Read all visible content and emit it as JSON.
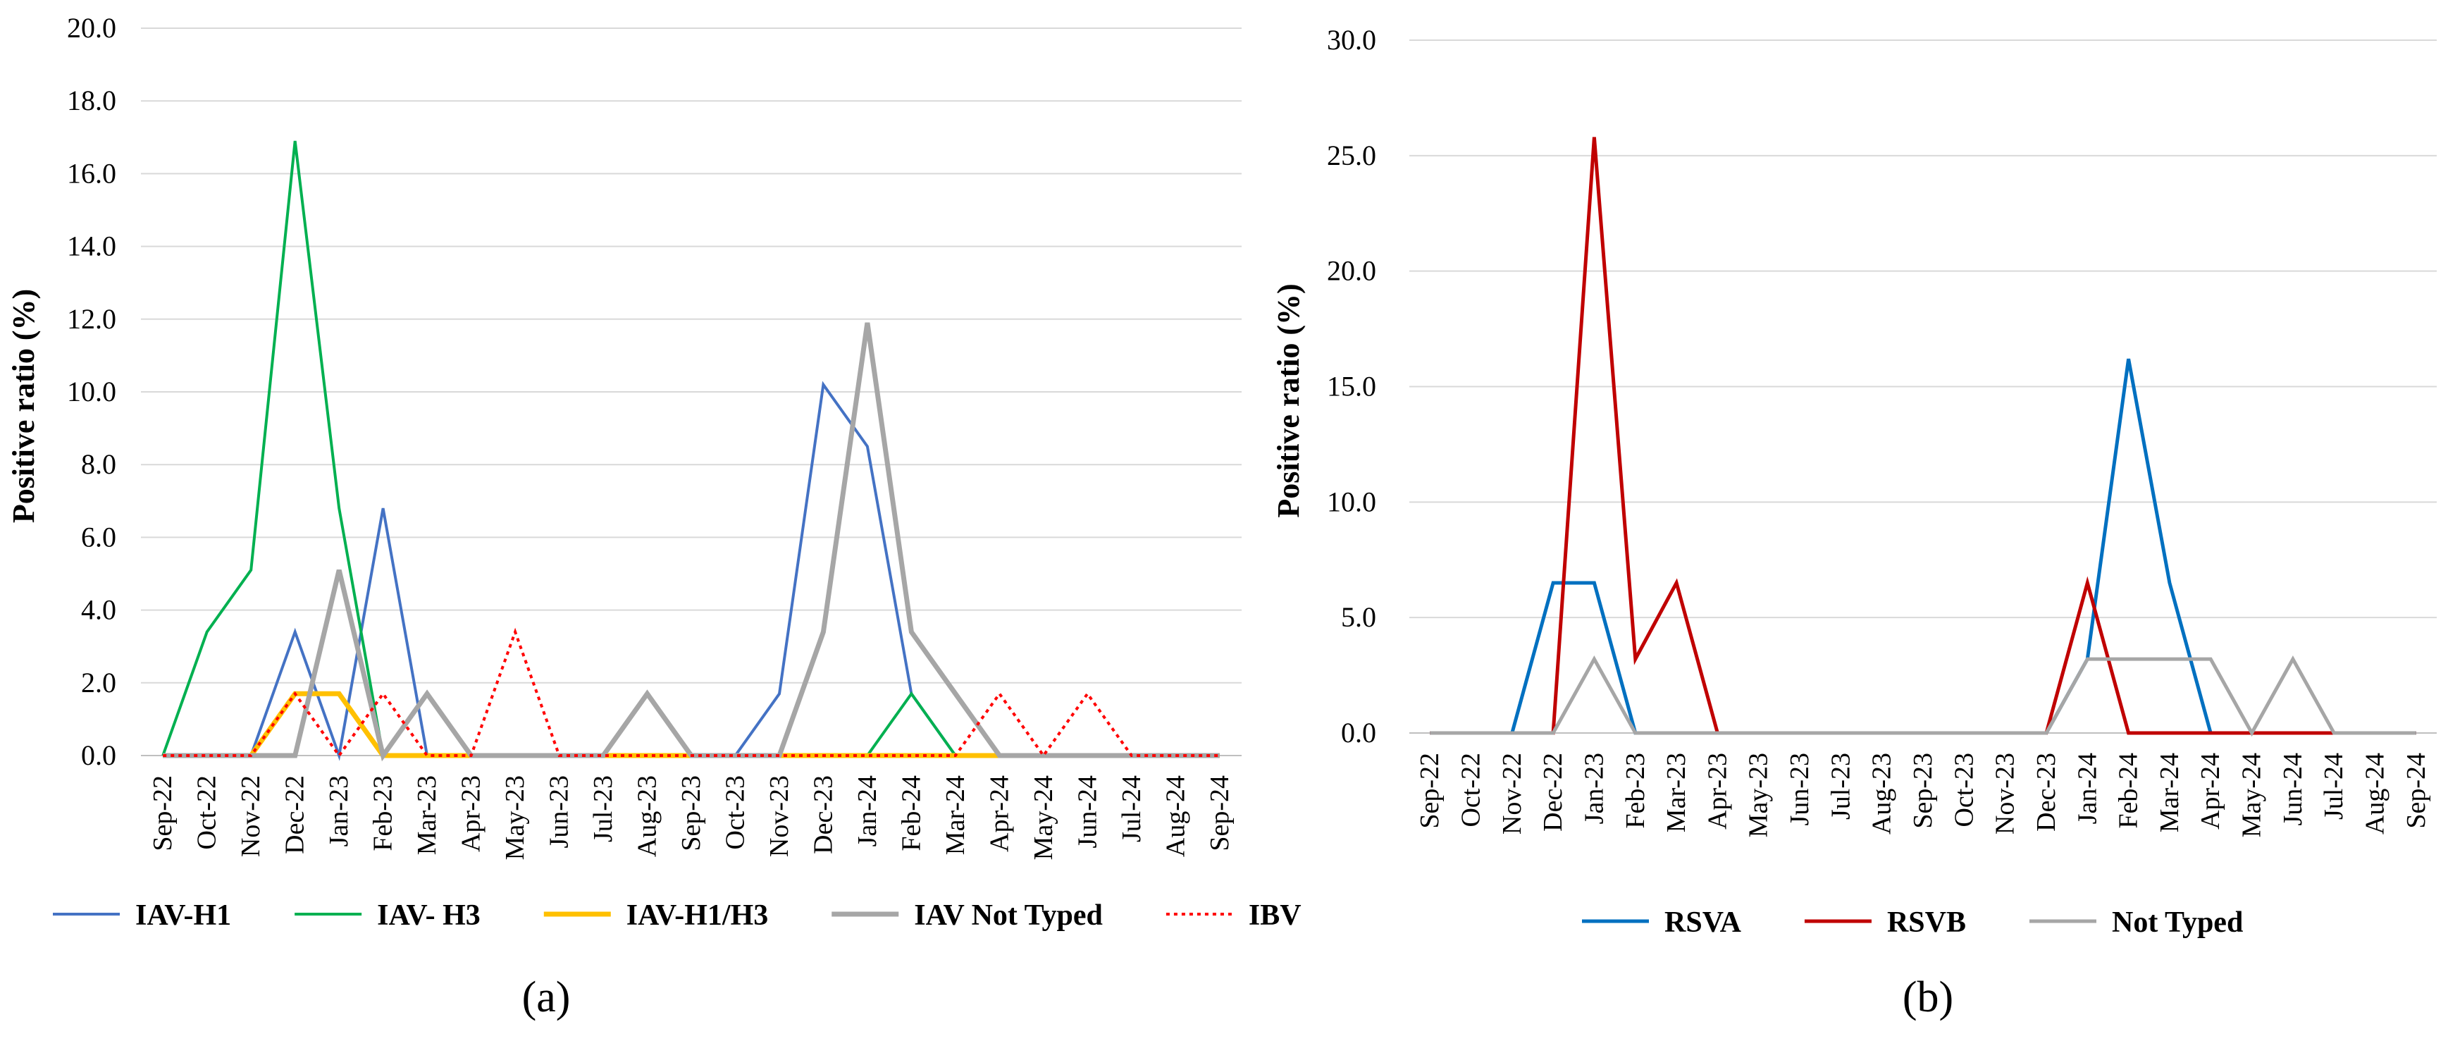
{
  "chart_data": [
    {
      "type": "line",
      "id": "a",
      "caption": "(a)",
      "ylabel": "Positive ratio (%)",
      "xlabel": "",
      "ylim": [
        0,
        20
      ],
      "ytick_labels": [
        "0.0",
        "2.0",
        "4.0",
        "6.0",
        "8.0",
        "10.0",
        "12.0",
        "14.0",
        "16.0",
        "18.0",
        "20.0"
      ],
      "categories": [
        "Sep-22",
        "Oct-22",
        "Nov-22",
        "Dec-22",
        "Jan-23",
        "Feb-23",
        "Mar-23",
        "Apr-23",
        "May-23",
        "Jun-23",
        "Jul-23",
        "Aug-23",
        "Sep-23",
        "Oct-23",
        "Nov-23",
        "Dec-23",
        "Jan-24",
        "Feb-24",
        "Mar-24",
        "Apr-24",
        "May-24",
        "Jun-24",
        "Jul-24",
        "Aug-24",
        "Sep-24"
      ],
      "grid": true,
      "legend_position": "bottom",
      "series": [
        {
          "name": "IAV-H1",
          "color": "#4472C4",
          "style": "solid",
          "width": 4,
          "values": [
            0,
            0,
            0,
            3.4,
            0,
            6.8,
            0,
            0,
            0,
            0,
            0,
            0,
            0,
            0,
            1.7,
            10.2,
            8.5,
            1.7,
            0,
            0,
            0,
            0,
            0,
            0,
            0
          ]
        },
        {
          "name": "IAV- H3",
          "color": "#00B050",
          "style": "solid",
          "width": 4,
          "values": [
            0,
            3.4,
            5.1,
            16.9,
            6.8,
            0,
            0,
            0,
            0,
            0,
            0,
            0,
            0,
            0,
            0,
            0,
            0,
            1.7,
            0,
            0,
            0,
            0,
            0,
            0,
            0
          ]
        },
        {
          "name": "IAV-H1/H3",
          "color": "#FFC000",
          "style": "solid",
          "width": 7,
          "values": [
            0,
            0,
            0,
            1.7,
            1.7,
            0,
            0,
            0,
            0,
            0,
            0,
            0,
            0,
            0,
            0,
            0,
            0,
            0,
            0,
            0,
            0,
            0,
            0,
            0,
            0
          ]
        },
        {
          "name": "IAV Not Typed",
          "color": "#A6A6A6",
          "style": "solid",
          "width": 7,
          "values": [
            0,
            0,
            0,
            0,
            5.1,
            0,
            1.7,
            0,
            0,
            0,
            0,
            1.7,
            0,
            0,
            0,
            3.4,
            11.9,
            3.4,
            1.7,
            0,
            0,
            0,
            0,
            0,
            0
          ]
        },
        {
          "name": "IBV",
          "color": "#FF0000",
          "style": "dotted",
          "width": 4,
          "values": [
            0,
            0,
            0,
            1.7,
            0,
            1.7,
            0,
            0,
            3.4,
            0,
            0,
            0,
            0,
            0,
            0,
            0,
            0,
            0,
            0,
            1.7,
            0,
            1.7,
            0,
            0,
            0
          ]
        }
      ]
    },
    {
      "type": "line",
      "id": "b",
      "caption": "(b)",
      "ylabel": "Positive ratio (%)",
      "xlabel": "",
      "ylim": [
        0,
        30
      ],
      "ytick_labels": [
        "0.0",
        "5.0",
        "10.0",
        "15.0",
        "20.0",
        "25.0",
        "30.0"
      ],
      "categories": [
        "Sep-22",
        "Oct-22",
        "Nov-22",
        "Dec-22",
        "Jan-23",
        "Feb-23",
        "Mar-23",
        "Apr-23",
        "May-23",
        "Jun-23",
        "Jul-23",
        "Aug-23",
        "Sep-23",
        "Oct-23",
        "Nov-23",
        "Dec-23",
        "Jan-24",
        "Feb-24",
        "Mar-24",
        "Apr-24",
        "May-24",
        "Jun-24",
        "Jul-24",
        "Aug-24",
        "Sep-24"
      ],
      "grid": true,
      "legend_position": "bottom",
      "series": [
        {
          "name": "RSVA",
          "color": "#0070C0",
          "style": "solid",
          "width": 5,
          "values": [
            0,
            0,
            0,
            6.5,
            6.5,
            0,
            0,
            0,
            0,
            0,
            0,
            0,
            0,
            0,
            0,
            0,
            3.2,
            16.2,
            6.5,
            0,
            0,
            0,
            0,
            0,
            0
          ]
        },
        {
          "name": "RSVB",
          "color": "#C00000",
          "style": "solid",
          "width": 5,
          "values": [
            0,
            0,
            0,
            0,
            25.8,
            3.2,
            6.5,
            0,
            0,
            0,
            0,
            0,
            0,
            0,
            0,
            0,
            6.5,
            0,
            0,
            0,
            0,
            0,
            0,
            0,
            0
          ]
        },
        {
          "name": "Not Typed",
          "color": "#A6A6A6",
          "style": "solid",
          "width": 5,
          "values": [
            0,
            0,
            0,
            0,
            3.2,
            0,
            0,
            0,
            0,
            0,
            0,
            0,
            0,
            0,
            0,
            0,
            3.2,
            3.2,
            3.2,
            3.2,
            0,
            3.2,
            0,
            0,
            0
          ]
        }
      ]
    }
  ]
}
